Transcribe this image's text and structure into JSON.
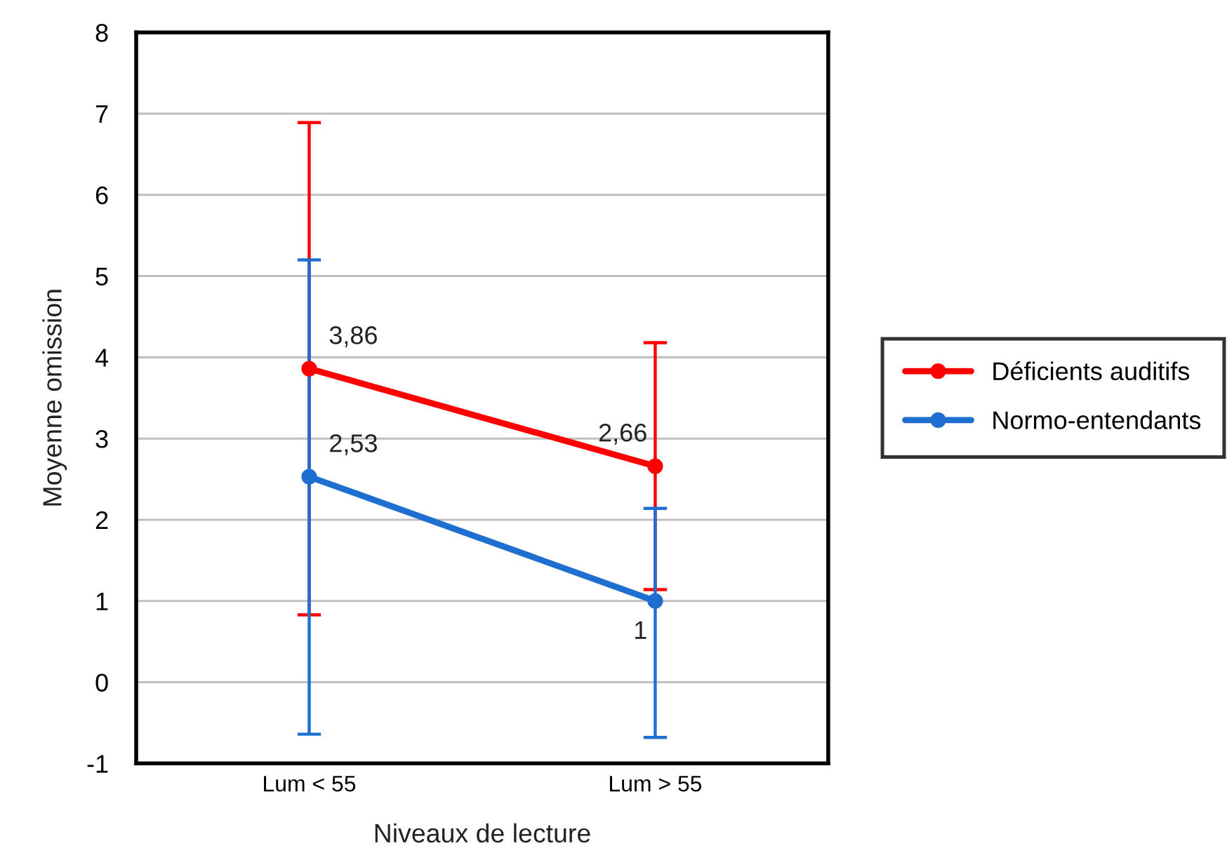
{
  "chart_data": {
    "type": "line",
    "xlabel": "Niveaux de lecture",
    "ylabel": "Moyenne omission",
    "categories": [
      "Lum < 55",
      "Lum > 55"
    ],
    "series": [
      {
        "name": "Déficients auditifs",
        "color": "#ff0000",
        "values": [
          3.86,
          2.66
        ],
        "errors": [
          3.03,
          1.52
        ],
        "value_labels": [
          "3,86",
          "2,66"
        ]
      },
      {
        "name": "Normo-entendants",
        "color": "#1f6fd0",
        "values": [
          2.53,
          1
        ],
        "errors": [
          [
            -0.64,
            5.2
          ],
          [
            -0.68,
            2.14
          ]
        ],
        "value_labels": [
          "2,53",
          "1"
        ]
      }
    ],
    "ylim": [
      -1,
      8
    ],
    "yticks": [
      -1,
      0,
      1,
      2,
      3,
      4,
      5,
      6,
      7,
      8
    ],
    "grid": "y",
    "legend": "right",
    "marker": "circle",
    "line_style": "solid"
  }
}
